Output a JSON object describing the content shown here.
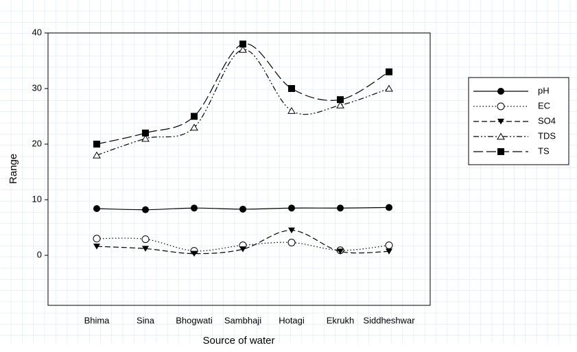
{
  "chart_data": {
    "type": "line",
    "x_label": "Source of water",
    "y_label": "Range",
    "categories": [
      "Bhima",
      "Sina",
      "Bhogwati",
      "Sambhaji",
      "Hotagi",
      "Ekrukh",
      "Siddheshwar"
    ],
    "series": [
      {
        "name": "pH",
        "color": "#000000",
        "values": [
          8.4,
          8.2,
          8.5,
          8.3,
          8.5,
          8.5,
          8.6
        ]
      },
      {
        "name": "EC",
        "color": "#000000",
        "values": [
          3.0,
          2.9,
          0.8,
          1.8,
          2.3,
          0.9,
          1.8
        ]
      },
      {
        "name": "SO4",
        "color": "#000000",
        "values": [
          1.6,
          1.2,
          0.3,
          1.1,
          4.5,
          0.7,
          0.7
        ]
      },
      {
        "name": "TDS",
        "color": "#000000",
        "values": [
          18,
          21,
          23,
          37,
          26,
          27,
          30
        ]
      },
      {
        "name": "TS",
        "color": "#000000",
        "values": [
          20,
          22,
          25,
          38,
          30,
          28,
          33
        ]
      }
    ],
    "ylim": [
      -9,
      40
    ],
    "yticks": [
      0,
      10,
      20,
      30,
      40
    ],
    "legend": "right"
  }
}
